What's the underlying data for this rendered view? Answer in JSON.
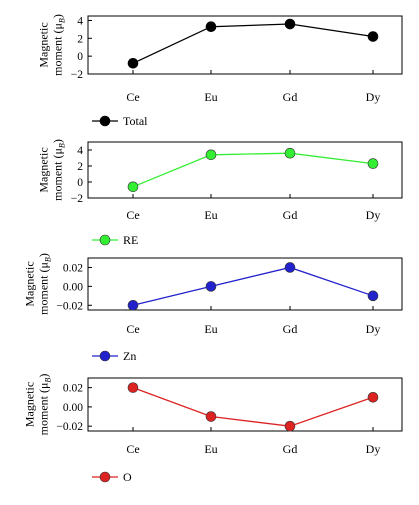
{
  "chart_data": [
    {
      "type": "line",
      "categories": [
        "Ce",
        "Eu",
        "Gd",
        "Dy"
      ],
      "series": [
        {
          "name": "Total",
          "values": [
            -0.8,
            3.3,
            3.6,
            2.2
          ],
          "color": "#000000"
        }
      ],
      "ylabel_line1": "Magnetic",
      "ylabel_line2": "moment (μ",
      "ylabel_sub": "B",
      "ylabel_close": ")",
      "ylim": [
        -2,
        4.5
      ],
      "yticks": [
        -2,
        0,
        2,
        4
      ],
      "ytick_labels": [
        "−2",
        "0",
        "2",
        "4"
      ],
      "legend_position": "bottom-left",
      "grid": false
    },
    {
      "type": "line",
      "categories": [
        "Ce",
        "Eu",
        "Gd",
        "Dy"
      ],
      "series": [
        {
          "name": "RE",
          "values": [
            -0.6,
            3.4,
            3.6,
            2.3
          ],
          "color": "#33ee33"
        }
      ],
      "ylabel_line1": "Magnetic",
      "ylabel_line2": "moment (μ",
      "ylabel_sub": "B",
      "ylabel_close": ")",
      "ylim": [
        -2,
        5
      ],
      "yticks": [
        -2,
        0,
        2,
        4
      ],
      "ytick_labels": [
        "−2",
        "0",
        "2",
        "4"
      ],
      "legend_position": "bottom-left",
      "grid": false
    },
    {
      "type": "line",
      "categories": [
        "Ce",
        "Eu",
        "Gd",
        "Dy"
      ],
      "series": [
        {
          "name": "Zn",
          "values": [
            -0.02,
            0.0,
            0.02,
            -0.01
          ],
          "color": "#2222cc"
        }
      ],
      "ylabel_line1": "Magnetic",
      "ylabel_line2": "moment (μ",
      "ylabel_sub": "B",
      "ylabel_close": ")",
      "ylim": [
        -0.025,
        0.03
      ],
      "yticks": [
        -0.02,
        0.0,
        0.02
      ],
      "ytick_labels": [
        "−0.02",
        "0.00",
        "0.02"
      ],
      "legend_position": "bottom-left",
      "grid": false
    },
    {
      "type": "line",
      "categories": [
        "Ce",
        "Eu",
        "Gd",
        "Dy"
      ],
      "series": [
        {
          "name": "O",
          "values": [
            0.02,
            -0.01,
            -0.02,
            0.01
          ],
          "color": "#dd2222"
        }
      ],
      "ylabel_line1": "Magnetic",
      "ylabel_line2": "moment (μ",
      "ylabel_sub": "B",
      "ylabel_close": ")",
      "ylim": [
        -0.025,
        0.03
      ],
      "yticks": [
        -0.02,
        0.0,
        0.02
      ],
      "ytick_labels": [
        "−0.02",
        "0.00",
        "0.02"
      ],
      "legend_position": "bottom-left",
      "grid": false
    }
  ]
}
